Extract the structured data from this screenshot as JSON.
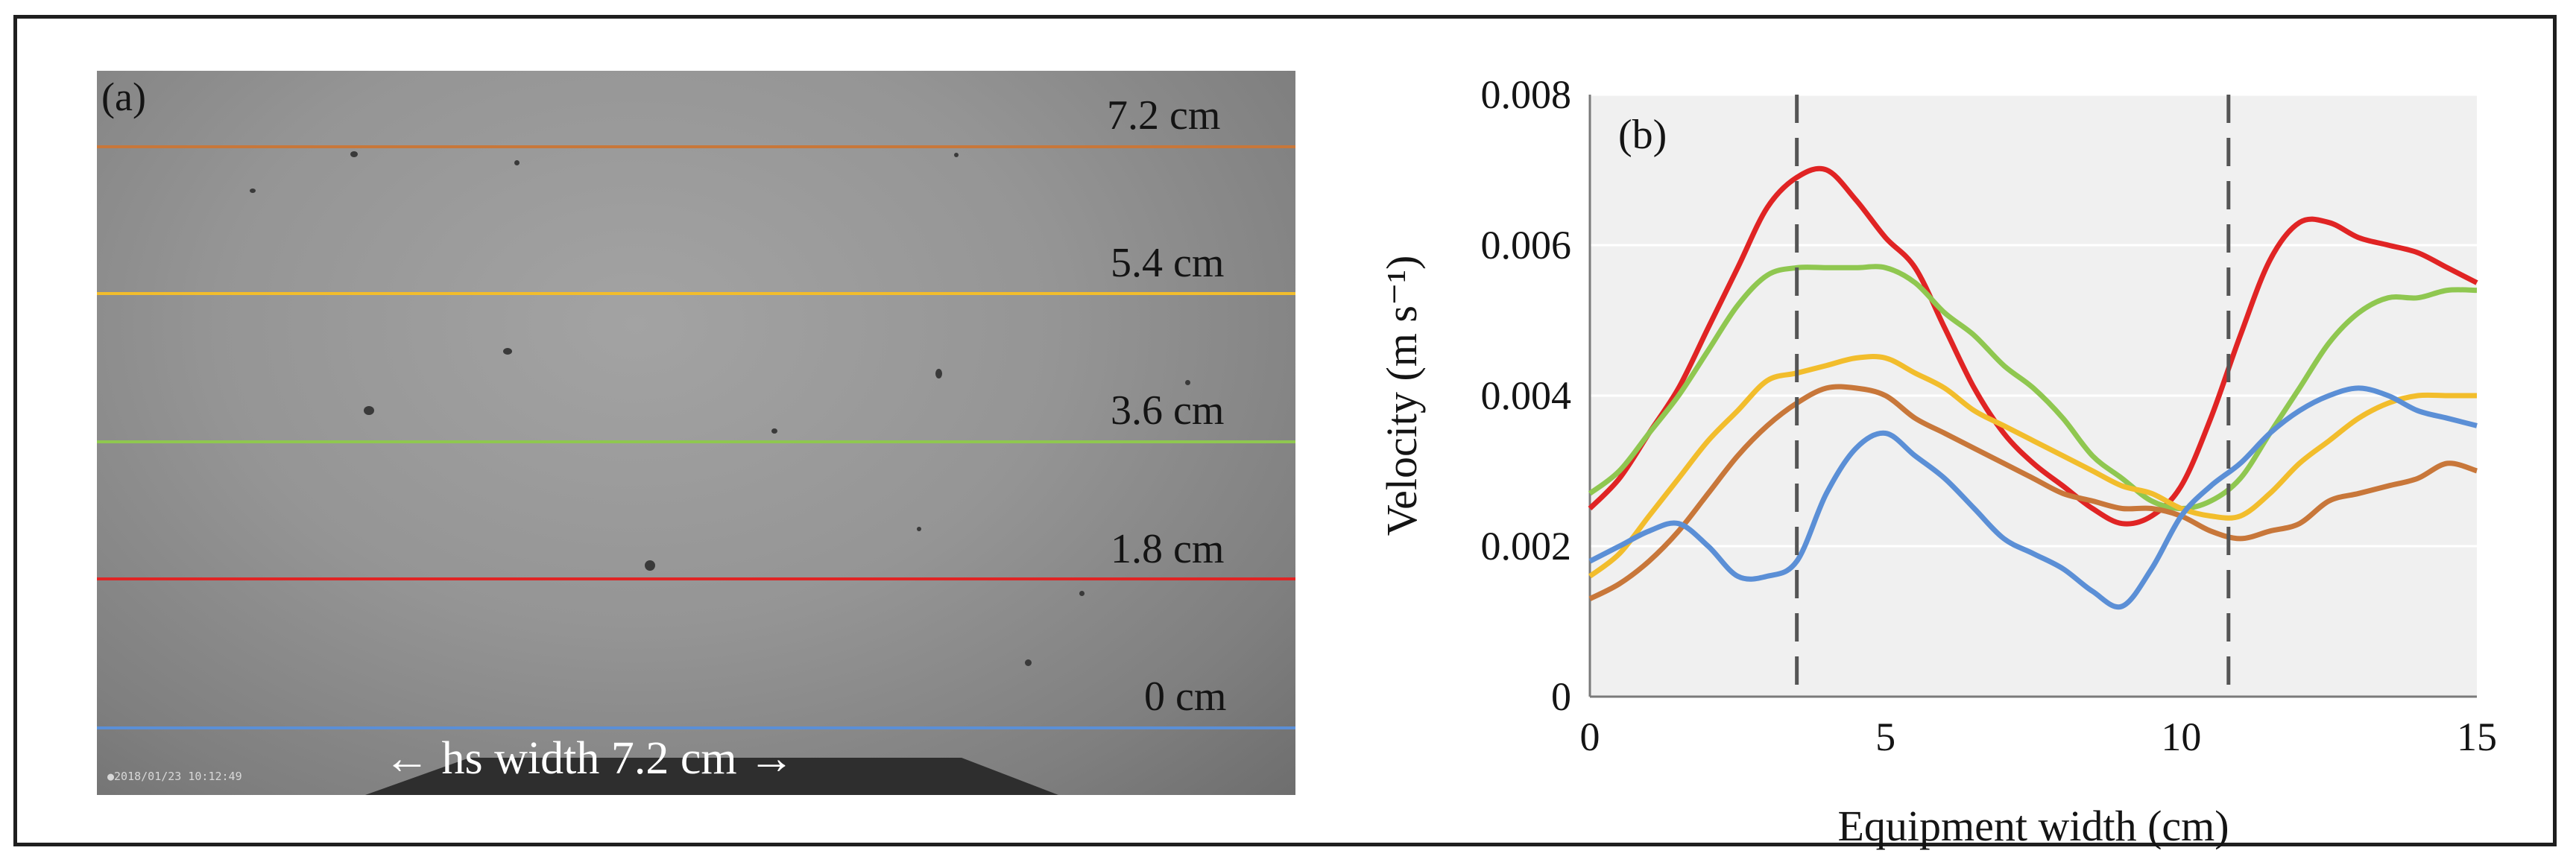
{
  "panel_a": {
    "label": "(a)",
    "timestamp": "●2018/01/23  10:12:49",
    "width_label": "hs width 7.2 cm",
    "depth_lines": [
      {
        "label": "7.2 cm",
        "color": "#c8773a"
      },
      {
        "label": "5.4 cm",
        "color": "#f2bd2c"
      },
      {
        "label": "3.6 cm",
        "color": "#8fc750"
      },
      {
        "label": "1.8 cm",
        "color": "#e02424"
      },
      {
        "label": "0 cm",
        "color": "#5b8fd6"
      }
    ]
  },
  "chart_data": {
    "type": "line",
    "panel_label": "(b)",
    "title": "",
    "xlabel": "Equipment width (cm)",
    "ylabel": "Velocity (m s⁻¹)",
    "xlim": [
      0,
      15
    ],
    "ylim": [
      0,
      0.008
    ],
    "xticks": [
      0,
      5,
      10,
      15
    ],
    "yticks": [
      0,
      0.002,
      0.004,
      0.006,
      0.008
    ],
    "ytick_labels": [
      "0",
      "0.002",
      "0.004",
      "0.006",
      "0.008"
    ],
    "grid": true,
    "vlines": [
      3.5,
      10.8
    ],
    "series": [
      {
        "name": "1.8 cm",
        "color": "#e02424",
        "x": [
          0,
          0.5,
          1,
          1.5,
          2,
          2.5,
          3,
          3.5,
          4,
          4.5,
          5,
          5.5,
          6,
          6.5,
          7,
          7.5,
          8,
          8.5,
          9,
          9.5,
          10,
          10.5,
          11,
          11.5,
          12,
          12.5,
          13,
          13.5,
          14,
          14.5,
          15
        ],
        "y": [
          0.0025,
          0.0029,
          0.0035,
          0.0041,
          0.0049,
          0.0057,
          0.0065,
          0.0069,
          0.007,
          0.0066,
          0.0061,
          0.0057,
          0.0049,
          0.0041,
          0.0035,
          0.0031,
          0.0028,
          0.0025,
          0.0023,
          0.0024,
          0.0028,
          0.0037,
          0.0048,
          0.0058,
          0.0063,
          0.0063,
          0.0061,
          0.006,
          0.0059,
          0.0057,
          0.0055
        ]
      },
      {
        "name": "3.6 cm",
        "color": "#8fc750",
        "x": [
          0,
          0.5,
          1,
          1.5,
          2,
          2.5,
          3,
          3.5,
          4,
          4.5,
          5,
          5.5,
          6,
          6.5,
          7,
          7.5,
          8,
          8.5,
          9,
          9.5,
          10,
          10.5,
          11,
          11.5,
          12,
          12.5,
          13,
          13.5,
          14,
          14.5,
          15
        ],
        "y": [
          0.0027,
          0.003,
          0.0035,
          0.004,
          0.0046,
          0.0052,
          0.0056,
          0.0057,
          0.0057,
          0.0057,
          0.0057,
          0.0055,
          0.0051,
          0.0048,
          0.0044,
          0.0041,
          0.0037,
          0.0032,
          0.0029,
          0.0026,
          0.0025,
          0.0026,
          0.0029,
          0.0035,
          0.0041,
          0.0047,
          0.0051,
          0.0053,
          0.0053,
          0.0054,
          0.0054
        ]
      },
      {
        "name": "5.4 cm",
        "color": "#f2bd2c",
        "x": [
          0,
          0.5,
          1,
          1.5,
          2,
          2.5,
          3,
          3.5,
          4,
          4.5,
          5,
          5.5,
          6,
          6.5,
          7,
          7.5,
          8,
          8.5,
          9,
          9.5,
          10,
          10.5,
          11,
          11.5,
          12,
          12.5,
          13,
          13.5,
          14,
          14.5,
          15
        ],
        "y": [
          0.0016,
          0.0019,
          0.0024,
          0.0029,
          0.0034,
          0.0038,
          0.0042,
          0.0043,
          0.0044,
          0.0045,
          0.0045,
          0.0043,
          0.0041,
          0.0038,
          0.0036,
          0.0034,
          0.0032,
          0.003,
          0.0028,
          0.0027,
          0.0025,
          0.0024,
          0.0024,
          0.0027,
          0.0031,
          0.0034,
          0.0037,
          0.0039,
          0.004,
          0.004,
          0.004
        ]
      },
      {
        "name": "7.2 cm",
        "color": "#c8773a",
        "x": [
          0,
          0.5,
          1,
          1.5,
          2,
          2.5,
          3,
          3.5,
          4,
          4.5,
          5,
          5.5,
          6,
          6.5,
          7,
          7.5,
          8,
          8.5,
          9,
          9.5,
          10,
          10.5,
          11,
          11.5,
          12,
          12.5,
          13,
          13.5,
          14,
          14.5,
          15
        ],
        "y": [
          0.0013,
          0.0015,
          0.0018,
          0.0022,
          0.0027,
          0.0032,
          0.0036,
          0.0039,
          0.0041,
          0.0041,
          0.004,
          0.0037,
          0.0035,
          0.0033,
          0.0031,
          0.0029,
          0.0027,
          0.0026,
          0.0025,
          0.0025,
          0.0024,
          0.0022,
          0.0021,
          0.0022,
          0.0023,
          0.0026,
          0.0027,
          0.0028,
          0.0029,
          0.0031,
          0.003
        ]
      },
      {
        "name": "0 cm",
        "color": "#5b8fd6",
        "x": [
          0,
          0.5,
          1,
          1.5,
          2,
          2.5,
          3,
          3.5,
          4,
          4.5,
          5,
          5.5,
          6,
          6.5,
          7,
          7.5,
          8,
          8.5,
          9,
          9.5,
          10,
          10.5,
          11,
          11.5,
          12,
          12.5,
          13,
          13.5,
          14,
          14.5,
          15
        ],
        "y": [
          0.0018,
          0.002,
          0.0022,
          0.0023,
          0.002,
          0.0016,
          0.0016,
          0.0018,
          0.0027,
          0.0033,
          0.0035,
          0.0032,
          0.0029,
          0.0025,
          0.0021,
          0.0019,
          0.0017,
          0.0014,
          0.0012,
          0.0017,
          0.0024,
          0.0028,
          0.0031,
          0.0035,
          0.0038,
          0.004,
          0.0041,
          0.004,
          0.0038,
          0.0037,
          0.0036
        ]
      }
    ]
  }
}
